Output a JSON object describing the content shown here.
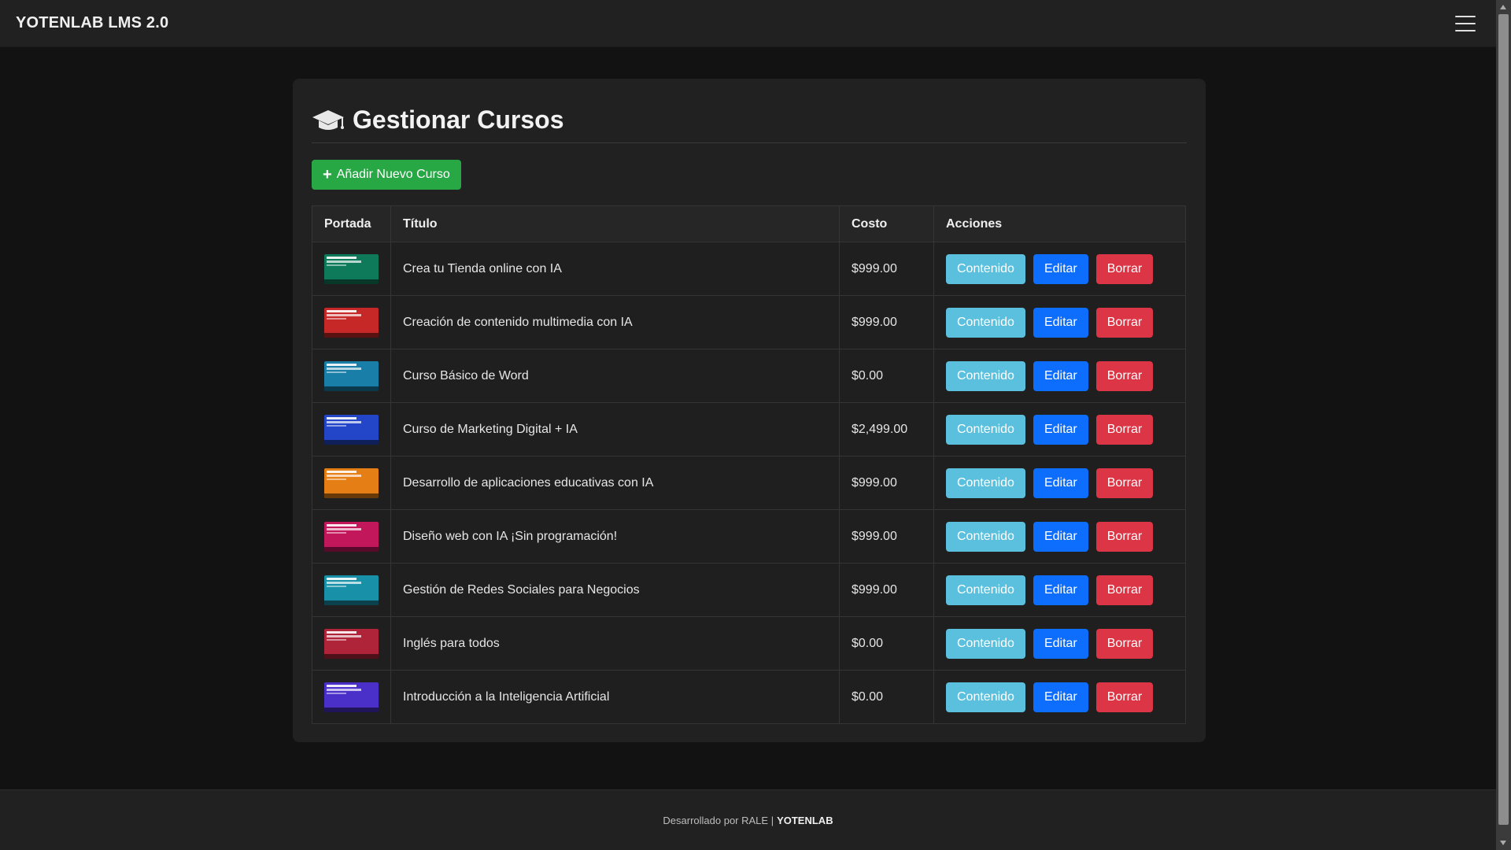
{
  "navbar": {
    "brand": "YOTENLAB LMS 2.0",
    "menu_icon": "hamburger-icon"
  },
  "page": {
    "title": "Gestionar Cursos",
    "title_icon": "graduation-cap-icon",
    "add_button": "Añadir Nuevo Curso"
  },
  "table": {
    "headers": {
      "portada": "Portada",
      "titulo": "Título",
      "costo": "Costo",
      "acciones": "Acciones"
    },
    "rows": [
      {
        "title": "Crea tu Tienda online con IA",
        "cost": "$999.00",
        "thumb_color": "#0f7a5a"
      },
      {
        "title": "Creación de contenido multimedia con IA",
        "cost": "$999.00",
        "thumb_color": "#c62828"
      },
      {
        "title": "Curso Básico de Word",
        "cost": "$0.00",
        "thumb_color": "#1a7fa8"
      },
      {
        "title": "Curso de Marketing Digital + IA",
        "cost": "$2,499.00",
        "thumb_color": "#2346c8"
      },
      {
        "title": "Desarrollo de aplicaciones educativas con IA",
        "cost": "$999.00",
        "thumb_color": "#e67e16"
      },
      {
        "title": "Diseño web con IA ¡Sin programación!",
        "cost": "$999.00",
        "thumb_color": "#c2185b"
      },
      {
        "title": "Gestión de Redes Sociales para Negocios",
        "cost": "$999.00",
        "thumb_color": "#1890a8"
      },
      {
        "title": "Inglés para todos",
        "cost": "$0.00",
        "thumb_color": "#b0243a"
      },
      {
        "title": "Introducción a la Inteligencia Artificial",
        "cost": "$0.00",
        "thumb_color": "#4a2fc8"
      }
    ],
    "actions": {
      "content": "Contenido",
      "edit": "Editar",
      "delete": "Borrar"
    }
  },
  "footer": {
    "text": "Desarrollado por RALE |",
    "brand": "YOTENLAB"
  },
  "colors": {
    "add": "#28a745",
    "info": "#5bc0de",
    "primary": "#0d6efd",
    "danger": "#dc3545"
  }
}
